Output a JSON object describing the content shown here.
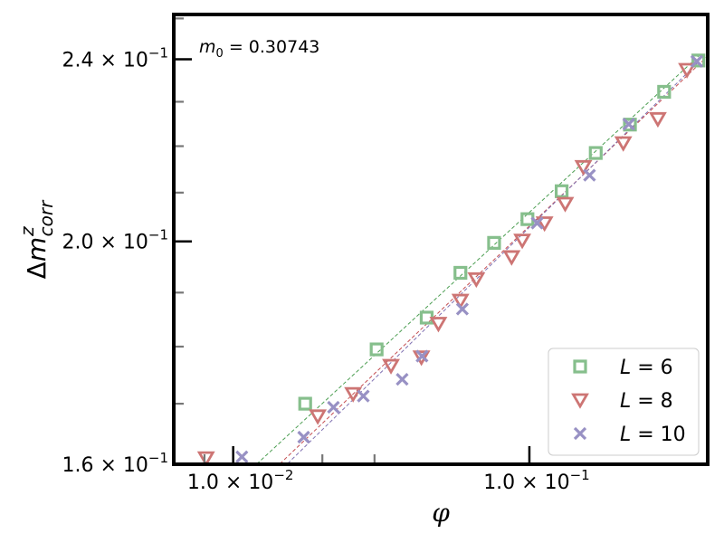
{
  "chart_data": {
    "type": "scatter",
    "xscale": "log",
    "yscale": "log",
    "xlim": [
      0.0063,
      0.4
    ],
    "ylim": [
      0.16,
      0.251
    ],
    "xlabel_italic": "φ",
    "ylabel_prefix": "Δ",
    "ylabel_base": "m",
    "ylabel_sup": "z",
    "ylabel_sub": "corr",
    "annotation": {
      "lhs": "m",
      "sub": "0",
      "rhs": " = 0.30743"
    },
    "x_major_ticks": [
      {
        "value": 0.01,
        "mant": "1.0 × 10",
        "exp": "−2"
      },
      {
        "value": 0.1,
        "mant": "1.0 × 10",
        "exp": "−1"
      }
    ],
    "y_major_ticks": [
      {
        "value": 0.16,
        "mant": "1.6 × 10",
        "exp": "−1"
      },
      {
        "value": 0.2,
        "mant": "2.0 × 10",
        "exp": "−1"
      },
      {
        "value": 0.24,
        "mant": "2.4 × 10",
        "exp": "−1"
      }
    ],
    "y_minor_ticks": [
      0.17,
      0.18,
      0.19,
      0.21,
      0.22,
      0.23,
      0.25
    ],
    "x_minor_ticks": [
      0.008,
      0.02,
      0.03
    ],
    "legend": {
      "position": "lower-right"
    },
    "series": [
      {
        "name": "L = 6",
        "label_lhs": "L",
        "label_rhs": " = 6",
        "marker": "square",
        "color": "#86bf8c",
        "fit_color": "#4c9e52",
        "x": [
          0.0175,
          0.0305,
          0.045,
          0.0585,
          0.076,
          0.0985,
          0.1285,
          0.1675,
          0.2185,
          0.285,
          0.372
        ],
        "y": [
          0.17,
          0.1795,
          0.1853,
          0.1938,
          0.1997,
          0.2045,
          0.2103,
          0.2185,
          0.2248,
          0.2323,
          0.2397
        ],
        "fit": {
          "x0": 0.0105,
          "y0": 0.1575,
          "x1": 0.372,
          "y1": 0.2407
        }
      },
      {
        "name": "L = 8",
        "label_lhs": "L",
        "label_rhs": " = 8",
        "marker": "triangle-down",
        "color": "#cd7574",
        "fit_color": "#c44e52",
        "x": [
          0.0081,
          0.0193,
          0.0254,
          0.0341,
          0.0432,
          0.0493,
          0.0585,
          0.0662,
          0.0871,
          0.0946,
          0.1125,
          0.1321,
          0.1521,
          0.2075,
          0.2715,
          0.3405
        ],
        "y": [
          0.161,
          0.1679,
          0.1717,
          0.1766,
          0.1781,
          0.1842,
          0.1885,
          0.1926,
          0.1969,
          0.2002,
          0.2037,
          0.2077,
          0.2155,
          0.2207,
          0.2261,
          0.2375
        ],
        "fit": {
          "x0": 0.0126,
          "y0": 0.1575,
          "x1": 0.395,
          "y1": 0.2404
        }
      },
      {
        "name": "L = 10",
        "label_lhs": "L",
        "label_rhs": " = 10",
        "marker": "x",
        "color": "#9891c4",
        "fit_color": "#8172b2",
        "x": [
          0.0107,
          0.0173,
          0.0218,
          0.0275,
          0.0372,
          0.0434,
          0.0594,
          0.1062,
          0.1596,
          0.2165,
          0.3675
        ],
        "y": [
          0.1612,
          0.1644,
          0.1694,
          0.1713,
          0.1742,
          0.1783,
          0.1869,
          0.2037,
          0.2137,
          0.2249,
          0.2395
        ],
        "fit": {
          "x0": 0.0134,
          "y0": 0.1575,
          "x1": 0.372,
          "y1": 0.2393
        }
      }
    ]
  }
}
